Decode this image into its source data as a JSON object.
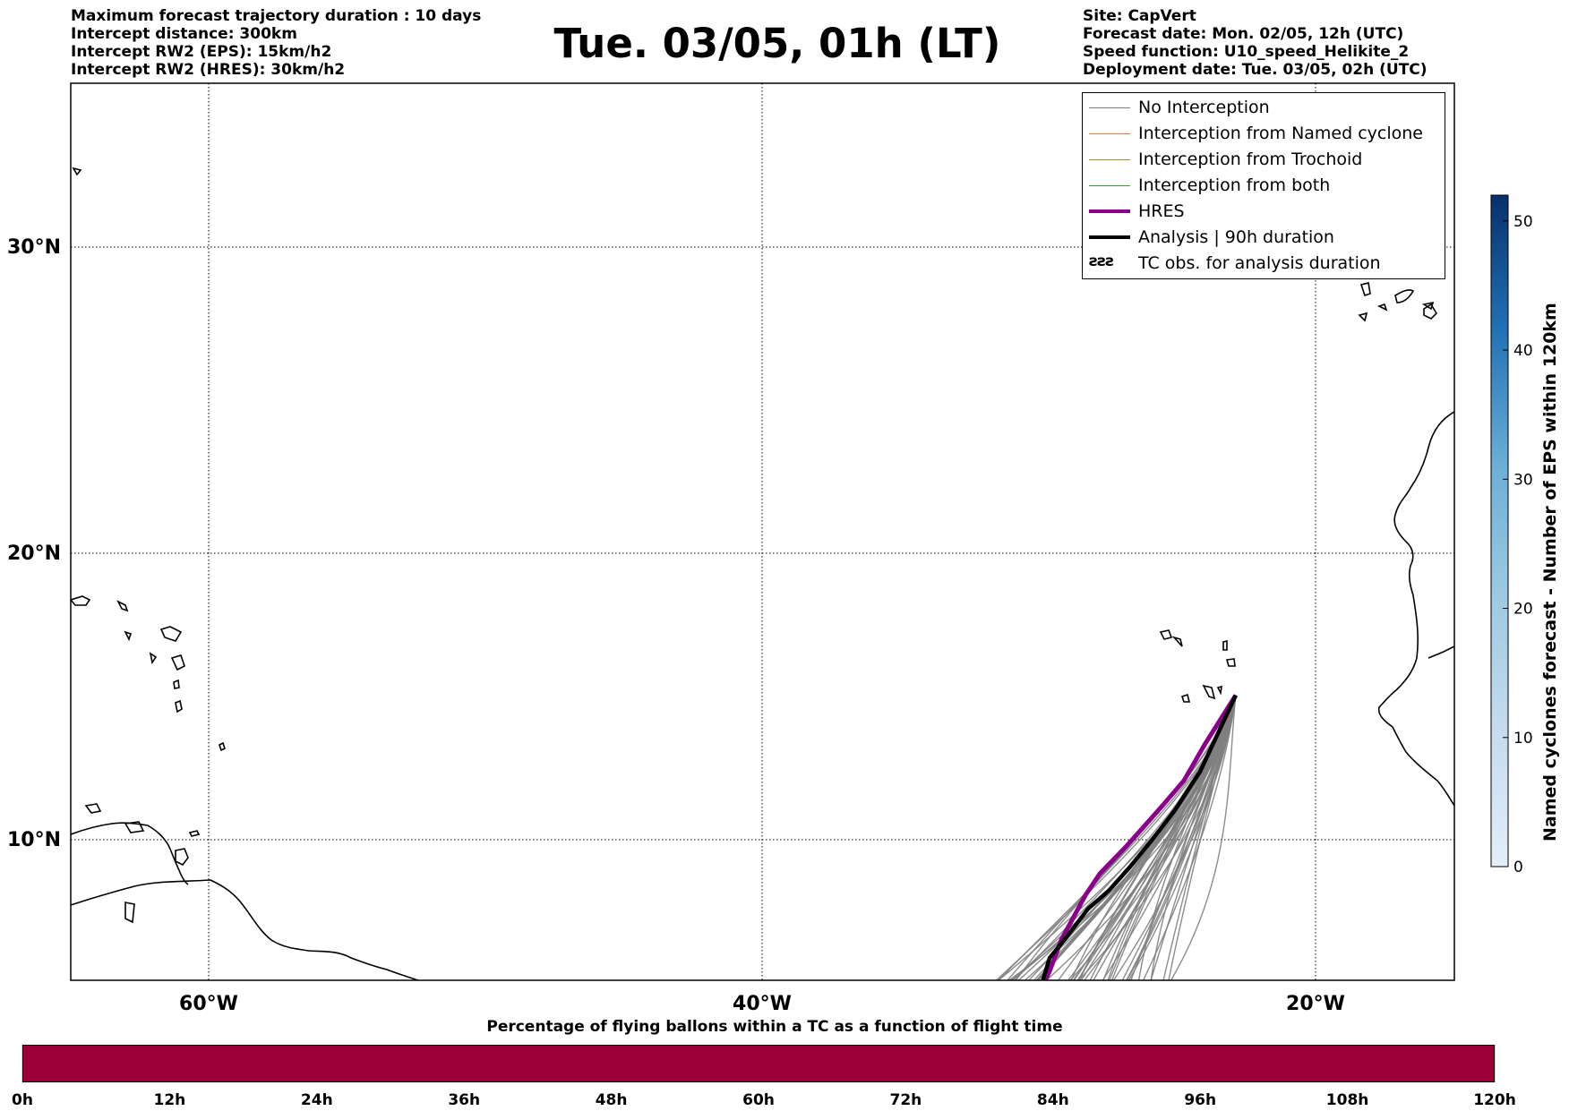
{
  "header": {
    "left": [
      "Maximum forecast trajectory duration : 10 days",
      "Intercept distance: 300km",
      "Intercept RW2 (EPS):  15km/h2",
      "Intercept RW2 (HRES): 30km/h2"
    ],
    "title": "Tue. 03/05, 01h (LT)",
    "right": [
      "Site: CapVert",
      "Forecast date: Mon. 02/05, 12h (UTC)",
      "Speed function: U10_speed_Helikite_2",
      "Deployment date: Tue. 03/05, 02h (UTC)"
    ]
  },
  "map": {
    "lat_labels": [
      "30°N",
      "20°N",
      "10°N"
    ],
    "lon_labels": [
      "60°W",
      "40°W",
      "20°W"
    ],
    "extent": {
      "lon_min": -65,
      "lon_max": -15,
      "lat_min": 5.4,
      "lat_max": 35.3
    }
  },
  "legend": {
    "items": [
      {
        "label": "No Interception",
        "color": "#7f7f7f",
        "style": "thin"
      },
      {
        "label": "Interception from Named cyclone",
        "color": "#f07850",
        "style": "thin"
      },
      {
        "label": "Interception from Trochoid",
        "color": "#9a8b3a",
        "style": "thin"
      },
      {
        "label": "Interception from both",
        "color": "#3a9a3a",
        "style": "thin"
      },
      {
        "label": "HRES",
        "color": "#8b008b",
        "style": "thick"
      },
      {
        "label": "Analysis | 90h duration",
        "color": "#000000",
        "style": "thick"
      },
      {
        "label": "TC obs. for analysis duration",
        "color": "#000000",
        "style": "symbol"
      }
    ]
  },
  "colorbar": {
    "label": "Named cyclones forecast - Number of EPS within 120km",
    "ticks": [
      "0",
      "10",
      "20",
      "30",
      "40",
      "50"
    ],
    "min": 0,
    "max": 52,
    "color_low": "#e3eef9",
    "color_high": "#08306b"
  },
  "tc_bar": {
    "title": "Percentage of flying ballons within a TC as a function of flight time",
    "color": "#9e003a",
    "ticks": [
      "0h",
      "12h",
      "24h",
      "36h",
      "48h",
      "60h",
      "72h",
      "84h",
      "96h",
      "108h",
      "120h"
    ]
  },
  "trajectories": {
    "start": {
      "lon": -22.9,
      "lat": 14.9
    },
    "ensemble_count": 50,
    "ensemble_color": "#7f7f7f",
    "hres_color": "#8b008b",
    "analysis_color": "#000000"
  }
}
